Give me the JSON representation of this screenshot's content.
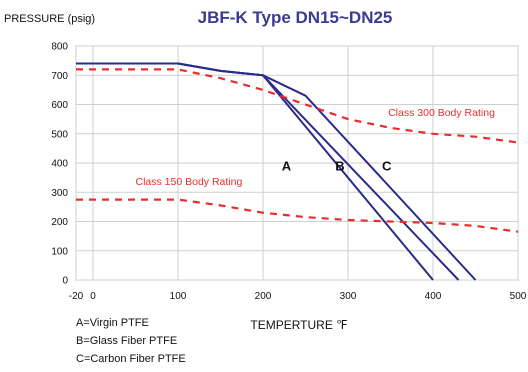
{
  "chart_data": {
    "type": "line",
    "title": "JBF-K Type  DN15~DN25",
    "ylabel": "PRESSURE (psig)",
    "xlabel": "TEMPERTURE ℉",
    "xlim": [
      -20,
      500
    ],
    "ylim": [
      0,
      800
    ],
    "x_ticks": [
      -20,
      0,
      100,
      200,
      300,
      400,
      500
    ],
    "y_ticks": [
      0,
      100,
      200,
      300,
      400,
      500,
      600,
      700,
      800
    ],
    "grid": true,
    "series": [
      {
        "name": "A",
        "color": "#2b2b8c",
        "style": "solid",
        "points": [
          [
            -20,
            740
          ],
          [
            100,
            740
          ],
          [
            150,
            715
          ],
          [
            200,
            700
          ],
          [
            400,
            0
          ]
        ]
      },
      {
        "name": "B",
        "color": "#2b2b8c",
        "style": "solid",
        "points": [
          [
            -20,
            740
          ],
          [
            100,
            740
          ],
          [
            150,
            715
          ],
          [
            200,
            700
          ],
          [
            430,
            0
          ]
        ]
      },
      {
        "name": "C",
        "color": "#2b2b8c",
        "style": "solid",
        "points": [
          [
            -20,
            740
          ],
          [
            100,
            740
          ],
          [
            150,
            715
          ],
          [
            200,
            700
          ],
          [
            250,
            630
          ],
          [
            450,
            0
          ]
        ]
      },
      {
        "name": "Class 300 Body Rating",
        "color": "#e62e2e",
        "style": "dashed",
        "points": [
          [
            -20,
            720
          ],
          [
            100,
            720
          ],
          [
            150,
            690
          ],
          [
            200,
            650
          ],
          [
            250,
            600
          ],
          [
            300,
            550
          ],
          [
            350,
            520
          ],
          [
            400,
            500
          ],
          [
            450,
            490
          ],
          [
            500,
            470
          ]
        ]
      },
      {
        "name": "Class 150 Body Rating",
        "color": "#e62e2e",
        "style": "dashed",
        "points": [
          [
            -20,
            275
          ],
          [
            100,
            275
          ],
          [
            150,
            255
          ],
          [
            200,
            230
          ],
          [
            250,
            215
          ],
          [
            300,
            205
          ],
          [
            350,
            200
          ],
          [
            400,
            195
          ],
          [
            450,
            185
          ],
          [
            500,
            165
          ]
        ]
      }
    ],
    "curve_labels": [
      {
        "text": "A",
        "x": 222,
        "y": 375
      },
      {
        "text": "B",
        "x": 285,
        "y": 375
      },
      {
        "text": "C",
        "x": 340,
        "y": 375
      }
    ],
    "rating_labels": [
      {
        "text": "Class 300 Body Rating",
        "x": 410,
        "y": 560
      },
      {
        "text": "Class 150 Body Rating",
        "x": 50,
        "y": 325
      }
    ],
    "legend_notes": [
      "A=Virgin PTFE",
      "B=Glass Fiber PTFE",
      "C=Carbon Fiber PTFE"
    ]
  }
}
